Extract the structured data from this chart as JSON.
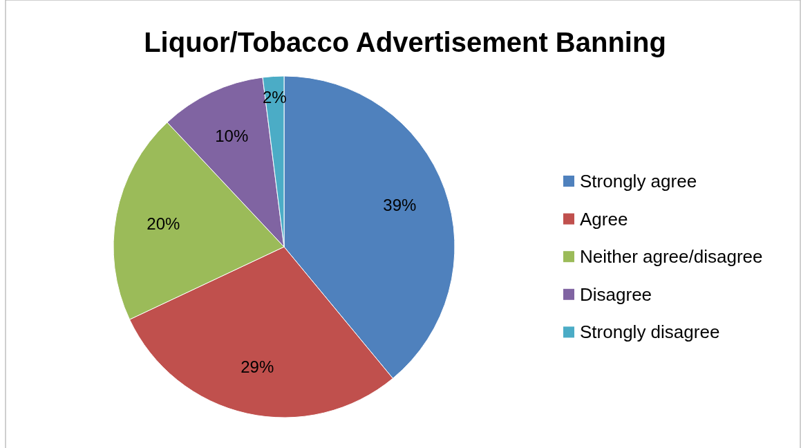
{
  "chart_data": {
    "type": "pie",
    "title": "Liquor/Tobacco Advertisement Banning",
    "categories": [
      "Strongly agree",
      "Agree",
      "Neither agree/disagree",
      "Disagree",
      "Strongly disagree"
    ],
    "values": [
      39,
      29,
      20,
      10,
      2
    ],
    "colors": [
      "#4f81bd",
      "#c0504d",
      "#9bbb59",
      "#8064a2",
      "#4bacc6"
    ],
    "value_labels": [
      "39%",
      "29%",
      "20%",
      "10%",
      "2%"
    ],
    "legend": "right"
  }
}
